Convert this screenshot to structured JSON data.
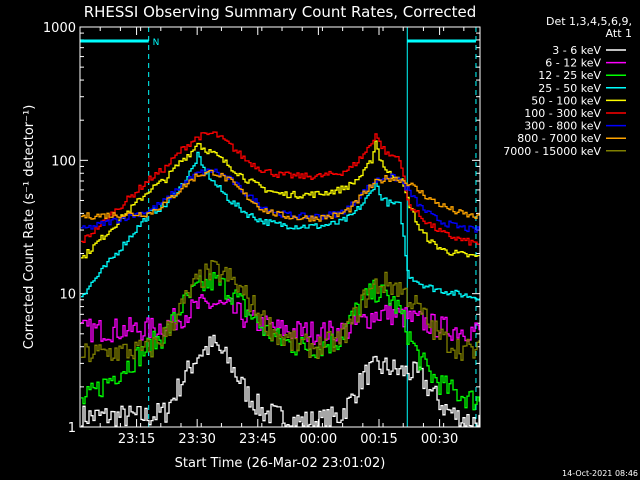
{
  "title": "RHESSI Observing Summary Count Rates, Corrected",
  "footer": {
    "timestamp": "14-Oct-2021 08:46"
  },
  "legend_header": [
    "Det 1,3,4,5,6,9,",
    "Att 1"
  ],
  "markers": {
    "night_label": "N"
  },
  "chart_data": {
    "type": "line",
    "title": "RHESSI Observing Summary Count Rates, Corrected",
    "xlabel": "Start Time (26-Mar-02 23:01:02)",
    "ylabel": "Corrected Count Rate (s⁻¹ detector⁻¹)",
    "yscale": "log",
    "ylim": [
      1,
      1000
    ],
    "xlim": [
      "23:01",
      "00:40"
    ],
    "xticks": [
      "23:15",
      "23:30",
      "23:45",
      "00:00",
      "00:15",
      "00:30"
    ],
    "yticks": [
      1,
      10,
      100,
      1000
    ],
    "grid": false,
    "legend_position": "right",
    "night_intervals": [
      [
        "23:01",
        "23:18"
      ],
      [
        "00:22",
        "00:39"
      ]
    ],
    "attenuator_times": [
      "00:22"
    ],
    "series": [
      {
        "name": "3 - 6 keV",
        "color": "#ffffff",
        "x": [
          "23:01",
          "23:18",
          "23:22",
          "23:26",
          "23:30",
          "23:34",
          "23:38",
          "23:42",
          "23:46",
          "23:50",
          "23:55",
          "00:00",
          "00:05",
          "00:08",
          "00:11",
          "00:14",
          "00:17",
          "00:20",
          "00:22",
          "00:25",
          "00:28",
          "00:31",
          "00:34",
          "00:38"
        ],
        "y": [
          1.2,
          1.2,
          1.3,
          2.2,
          3.5,
          4.2,
          3.0,
          1.8,
          1.3,
          1.2,
          1.1,
          1.1,
          1.2,
          1.6,
          2.4,
          2.8,
          2.8,
          2.6,
          2.6,
          2.4,
          1.8,
          1.4,
          1.2,
          1.1
        ]
      },
      {
        "name": "6 - 12 keV",
        "color": "#ff00ff",
        "x": [
          "23:01",
          "23:18",
          "23:22",
          "23:26",
          "23:30",
          "23:34",
          "23:38",
          "23:42",
          "23:46",
          "23:50",
          "23:55",
          "00:00",
          "00:05",
          "00:08",
          "00:11",
          "00:14",
          "00:17",
          "00:20",
          "00:22",
          "00:25",
          "00:28",
          "00:31",
          "00:34",
          "00:38"
        ],
        "y": [
          5.3,
          5.4,
          5.8,
          6.8,
          8.0,
          8.4,
          7.6,
          6.5,
          5.8,
          5.4,
          5.2,
          5.1,
          5.2,
          5.5,
          6.3,
          7.0,
          7.2,
          6.8,
          6.5,
          6.2,
          5.8,
          5.5,
          5.4,
          5.3
        ]
      },
      {
        "name": "12 - 25 keV",
        "color": "#00ff00",
        "x": [
          "23:01",
          "23:18",
          "23:22",
          "23:26",
          "23:30",
          "23:34",
          "23:38",
          "23:42",
          "23:46",
          "23:50",
          "23:55",
          "00:00",
          "00:05",
          "00:08",
          "00:11",
          "00:14",
          "00:17",
          "00:20",
          "00:22",
          "00:25",
          "00:28",
          "00:31",
          "00:34",
          "00:38"
        ],
        "y": [
          1.5,
          4.0,
          5.0,
          8.0,
          11.0,
          12.5,
          10.5,
          7.5,
          5.5,
          4.5,
          4.0,
          4.0,
          4.5,
          6.5,
          9.0,
          10.5,
          9.5,
          7.5,
          5.0,
          3.2,
          2.4,
          2.0,
          1.8,
          1.6
        ]
      },
      {
        "name": "25 - 50 keV",
        "color": "#00ffff",
        "x": [
          "23:01",
          "23:18",
          "23:22",
          "23:26",
          "23:29",
          "23:30",
          "23:31",
          "23:34",
          "23:38",
          "23:42",
          "23:46",
          "23:50",
          "23:55",
          "00:00",
          "00:05",
          "00:08",
          "00:11",
          "00:13",
          "00:14",
          "00:15",
          "00:17",
          "00:20",
          "00:22",
          "00:25",
          "00:28",
          "00:31",
          "00:34",
          "00:38"
        ],
        "y": [
          9.5,
          40,
          46,
          65,
          90,
          110,
          90,
          68,
          50,
          40,
          35,
          33,
          32,
          32,
          34,
          38,
          48,
          58,
          70,
          55,
          48,
          46,
          14,
          12,
          11,
          10.5,
          10,
          9.5
        ]
      },
      {
        "name": "50 - 100 keV",
        "color": "#ffff00",
        "x": [
          "23:01",
          "23:18",
          "23:22",
          "23:26",
          "23:29",
          "23:30",
          "23:31",
          "23:34",
          "23:38",
          "23:42",
          "23:46",
          "23:50",
          "23:55",
          "00:00",
          "00:05",
          "00:08",
          "00:11",
          "00:13",
          "00:14",
          "00:15",
          "00:17",
          "00:20",
          "00:22",
          "00:25",
          "00:28",
          "00:31",
          "00:34",
          "00:38"
        ],
        "y": [
          18,
          60,
          72,
          100,
          120,
          140,
          125,
          112,
          90,
          72,
          62,
          56,
          55,
          56,
          60,
          66,
          80,
          100,
          140,
          105,
          80,
          76,
          50,
          30,
          24,
          21,
          20,
          19
        ]
      },
      {
        "name": "100 - 300 keV",
        "color": "#ff0000",
        "x": [
          "23:01",
          "23:18",
          "23:22",
          "23:26",
          "23:30",
          "23:34",
          "23:38",
          "23:42",
          "23:46",
          "23:50",
          "23:55",
          "00:00",
          "00:05",
          "00:08",
          "00:11",
          "00:13",
          "00:14",
          "00:15",
          "00:17",
          "00:20",
          "00:22",
          "00:25",
          "00:28",
          "00:31",
          "00:34",
          "00:38"
        ],
        "y": [
          24,
          72,
          88,
          120,
          150,
          160,
          130,
          100,
          85,
          78,
          76,
          76,
          80,
          88,
          110,
          135,
          160,
          135,
          110,
          105,
          48,
          38,
          32,
          28,
          26,
          24
        ]
      },
      {
        "name": "300 - 800 keV",
        "color": "#0000ff",
        "x": [
          "23:01",
          "23:18",
          "23:22",
          "23:26",
          "23:30",
          "23:34",
          "23:38",
          "23:42",
          "23:46",
          "23:50",
          "23:55",
          "00:00",
          "00:05",
          "00:08",
          "00:11",
          "00:14",
          "00:17",
          "00:20",
          "00:22",
          "00:25",
          "00:28",
          "00:31",
          "00:34",
          "00:38"
        ],
        "y": [
          30,
          42,
          50,
          65,
          80,
          84,
          72,
          56,
          45,
          40,
          38,
          38,
          40,
          46,
          58,
          70,
          76,
          72,
          60,
          45,
          38,
          34,
          32,
          30
        ]
      },
      {
        "name": "800 - 7000 keV",
        "color": "#ffa500",
        "x": [
          "23:01",
          "23:18",
          "23:22",
          "23:26",
          "23:30",
          "23:34",
          "23:38",
          "23:42",
          "23:46",
          "23:50",
          "23:55",
          "00:00",
          "00:05",
          "00:08",
          "00:11",
          "00:14",
          "00:17",
          "00:20",
          "00:22",
          "00:25",
          "00:28",
          "00:31",
          "00:34",
          "00:38"
        ],
        "y": [
          38,
          40,
          48,
          62,
          78,
          82,
          70,
          54,
          43,
          39,
          37,
          37,
          39,
          44,
          56,
          68,
          74,
          72,
          68,
          58,
          50,
          45,
          41,
          38
        ]
      },
      {
        "name": "7000 - 15000 keV",
        "color": "#808000",
        "x": [
          "23:01",
          "23:18",
          "23:22",
          "23:26",
          "23:30",
          "23:34",
          "23:38",
          "23:42",
          "23:46",
          "23:50",
          "23:55",
          "00:00",
          "00:05",
          "00:08",
          "00:11",
          "00:14",
          "00:17",
          "00:20",
          "00:22",
          "00:25",
          "00:28",
          "00:31",
          "00:34",
          "00:38"
        ],
        "y": [
          3.5,
          3.8,
          5.0,
          8.0,
          12.5,
          15.0,
          13.0,
          9.5,
          6.5,
          4.8,
          4.1,
          4.0,
          4.5,
          6.0,
          9.0,
          11.5,
          12.0,
          11.0,
          9.5,
          7.5,
          5.5,
          4.5,
          4.0,
          3.7
        ]
      }
    ]
  }
}
